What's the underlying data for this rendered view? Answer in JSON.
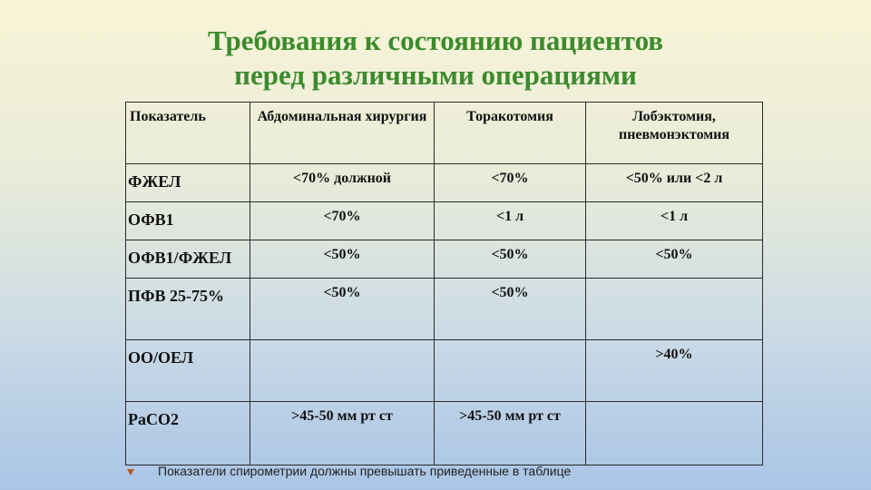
{
  "header": {
    "title_lines": [
      "Требования к состоянию пациентов",
      "перед различными операциями"
    ]
  },
  "table": {
    "columns": [
      "Показатель",
      "Абдоминальная хирургия",
      "Торакотомия",
      "Лобэктомия, пневмонэктомия"
    ],
    "rows": [
      [
        "ФЖЕЛ",
        "<70% должной",
        "<70%",
        "<50% или <2 л"
      ],
      [
        "ОФВ1",
        "<70%",
        "<1 л",
        "<1 л"
      ],
      [
        "ОФВ1/ФЖЕЛ",
        "<50%",
        "<50%",
        "<50%"
      ],
      [
        "ПФВ 25-75%",
        "<50%",
        "<50%",
        null
      ],
      [
        "ОО/ОЕЛ",
        null,
        null,
        ">40%"
      ],
      [
        "PaCO2",
        ">45-50 мм рт ст",
        ">45-50 мм рт ст",
        null
      ]
    ]
  },
  "footnote": "Показатели спирометрии должны превышать приведенные в таблице"
}
